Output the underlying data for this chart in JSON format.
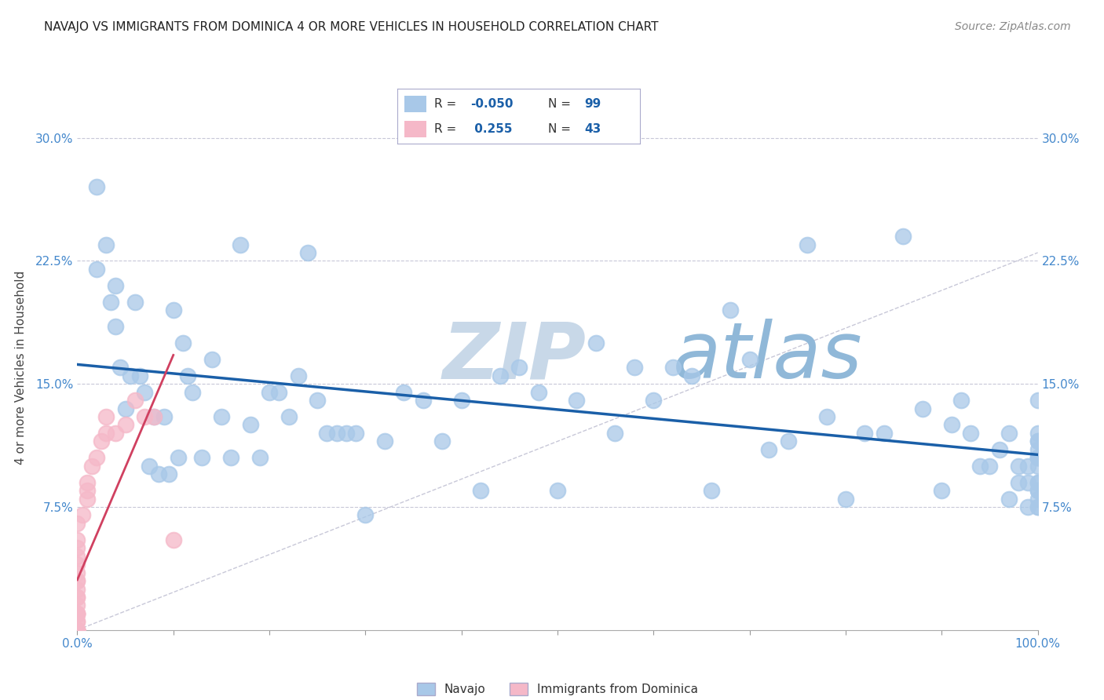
{
  "title": "NAVAJO VS IMMIGRANTS FROM DOMINICA 4 OR MORE VEHICLES IN HOUSEHOLD CORRELATION CHART",
  "source": "Source: ZipAtlas.com",
  "ylabel": "4 or more Vehicles in Household",
  "navajo_R": -0.05,
  "navajo_N": 99,
  "dominica_R": 0.255,
  "dominica_N": 43,
  "navajo_color": "#a8c8e8",
  "dominica_color": "#f5b8c8",
  "navajo_trend_color": "#1a5fa8",
  "dominica_trend_color": "#d04060",
  "background_color": "#ffffff",
  "grid_color": "#c8c8d8",
  "title_color": "#222222",
  "source_color": "#888888",
  "axis_label_color": "#444444",
  "tick_label_color": "#4488cc",
  "watermark_zip": "ZIP",
  "watermark_atlas": "atlas",
  "watermark_color_zip": "#c8d8e8",
  "watermark_color_atlas": "#90b8d8",
  "legend_text_color": "#333333",
  "legend_value_color": "#1a5fa8",
  "xlim": [
    0.0,
    1.0
  ],
  "ylim": [
    0.0,
    0.32
  ],
  "yticks": [
    0.075,
    0.15,
    0.225,
    0.3
  ],
  "ytick_labels": [
    "7.5%",
    "15.0%",
    "22.5%",
    "30.0%"
  ],
  "xtick_positions": [
    0.0,
    0.1,
    0.2,
    0.3,
    0.4,
    0.5,
    0.6,
    0.7,
    0.8,
    0.9,
    1.0
  ],
  "xtick_labels_sparse": [
    "0.0%",
    "",
    "",
    "",
    "",
    "",
    "",
    "",
    "",
    "",
    "100.0%"
  ],
  "navajo_x": [
    0.02,
    0.02,
    0.03,
    0.035,
    0.04,
    0.04,
    0.045,
    0.05,
    0.055,
    0.06,
    0.065,
    0.07,
    0.075,
    0.08,
    0.085,
    0.09,
    0.095,
    0.1,
    0.105,
    0.11,
    0.115,
    0.12,
    0.13,
    0.14,
    0.15,
    0.16,
    0.17,
    0.18,
    0.19,
    0.2,
    0.21,
    0.22,
    0.23,
    0.24,
    0.25,
    0.26,
    0.27,
    0.28,
    0.29,
    0.3,
    0.32,
    0.34,
    0.36,
    0.38,
    0.4,
    0.42,
    0.44,
    0.46,
    0.48,
    0.5,
    0.52,
    0.54,
    0.56,
    0.58,
    0.6,
    0.62,
    0.64,
    0.66,
    0.68,
    0.7,
    0.72,
    0.74,
    0.76,
    0.78,
    0.8,
    0.82,
    0.84,
    0.86,
    0.88,
    0.9,
    0.91,
    0.92,
    0.93,
    0.94,
    0.95,
    0.96,
    0.97,
    0.97,
    0.98,
    0.98,
    0.99,
    0.99,
    0.99,
    1.0,
    1.0,
    1.0,
    1.0,
    1.0,
    1.0,
    1.0,
    1.0,
    1.0,
    1.0,
    1.0,
    1.0,
    1.0,
    1.0,
    1.0,
    1.0
  ],
  "navajo_y": [
    0.27,
    0.22,
    0.235,
    0.2,
    0.185,
    0.21,
    0.16,
    0.135,
    0.155,
    0.2,
    0.155,
    0.145,
    0.1,
    0.13,
    0.095,
    0.13,
    0.095,
    0.195,
    0.105,
    0.175,
    0.155,
    0.145,
    0.105,
    0.165,
    0.13,
    0.105,
    0.235,
    0.125,
    0.105,
    0.145,
    0.145,
    0.13,
    0.155,
    0.23,
    0.14,
    0.12,
    0.12,
    0.12,
    0.12,
    0.07,
    0.115,
    0.145,
    0.14,
    0.115,
    0.14,
    0.085,
    0.155,
    0.16,
    0.145,
    0.085,
    0.14,
    0.175,
    0.12,
    0.16,
    0.14,
    0.16,
    0.155,
    0.085,
    0.195,
    0.165,
    0.11,
    0.115,
    0.235,
    0.13,
    0.08,
    0.12,
    0.12,
    0.24,
    0.135,
    0.085,
    0.125,
    0.14,
    0.12,
    0.1,
    0.1,
    0.11,
    0.08,
    0.12,
    0.09,
    0.1,
    0.09,
    0.1,
    0.075,
    0.085,
    0.115,
    0.14,
    0.115,
    0.105,
    0.08,
    0.105,
    0.09,
    0.1,
    0.09,
    0.085,
    0.075,
    0.105,
    0.11,
    0.12,
    0.075
  ],
  "dominica_x": [
    0.0,
    0.0,
    0.0,
    0.0,
    0.0,
    0.0,
    0.0,
    0.0,
    0.0,
    0.0,
    0.0,
    0.0,
    0.0,
    0.0,
    0.0,
    0.0,
    0.0,
    0.0,
    0.0,
    0.0,
    0.0,
    0.0,
    0.0,
    0.0,
    0.0,
    0.0,
    0.0,
    0.0,
    0.005,
    0.01,
    0.01,
    0.01,
    0.015,
    0.02,
    0.025,
    0.03,
    0.03,
    0.04,
    0.05,
    0.06,
    0.07,
    0.08,
    0.1
  ],
  "dominica_y": [
    0.0,
    0.0,
    0.0,
    0.0,
    0.0,
    0.0,
    0.0,
    0.0,
    0.0,
    0.0,
    0.005,
    0.005,
    0.01,
    0.01,
    0.01,
    0.01,
    0.015,
    0.02,
    0.02,
    0.025,
    0.03,
    0.03,
    0.035,
    0.04,
    0.045,
    0.05,
    0.055,
    0.065,
    0.07,
    0.08,
    0.085,
    0.09,
    0.1,
    0.105,
    0.115,
    0.12,
    0.13,
    0.12,
    0.125,
    0.14,
    0.13,
    0.13,
    0.055
  ],
  "diag_line_end_y": 0.23
}
